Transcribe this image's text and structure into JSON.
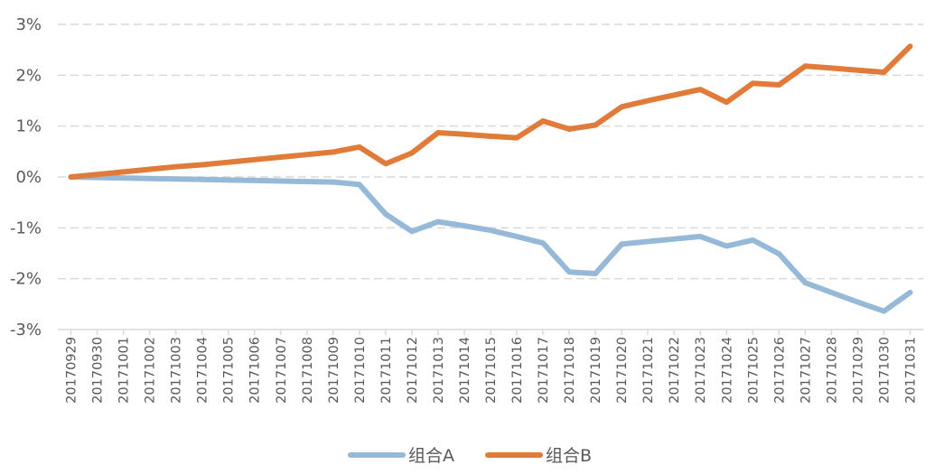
{
  "chart_data": {
    "type": "line",
    "title": "",
    "xlabel": "",
    "ylabel": "",
    "ylim": [
      -3,
      3
    ],
    "y_ticks": [
      "3%",
      "2%",
      "1%",
      "0%",
      "-1%",
      "-2%",
      "-3%"
    ],
    "y_tick_values": [
      3,
      2,
      1,
      0,
      -1,
      -2,
      -3
    ],
    "grid": true,
    "legend_position": "bottom",
    "categories": [
      "20170929",
      "20170930",
      "20171001",
      "20171002",
      "20171003",
      "20171004",
      "20171005",
      "20171006",
      "20171007",
      "20171008",
      "20171009",
      "20171010",
      "20171011",
      "20171012",
      "20171013",
      "20171014",
      "20171015",
      "20171016",
      "20171017",
      "20171018",
      "20171019",
      "20171020",
      "20171021",
      "20171022",
      "20171023",
      "20171024",
      "20171025",
      "20171026",
      "20171027",
      "20171028",
      "20171029",
      "20171030",
      "20171031"
    ],
    "series": [
      {
        "name": "组合A",
        "color": "#95B9D7",
        "values": [
          0,
          -0.01,
          -0.02,
          -0.03,
          -0.04,
          -0.05,
          -0.06,
          -0.07,
          -0.08,
          -0.09,
          -0.1,
          -0.15,
          -0.73,
          -1.07,
          -0.88,
          -0.96,
          -1.05,
          -1.17,
          -1.3,
          -1.87,
          -1.9,
          -1.32,
          -1.27,
          -1.22,
          -1.17,
          -1.36,
          -1.24,
          -1.51,
          -2.08,
          -2.27,
          -2.46,
          -2.64,
          -2.27
        ]
      },
      {
        "name": "组合B",
        "color": "#E07B39",
        "values": [
          0,
          0.05,
          0.1,
          0.15,
          0.2,
          0.24,
          0.29,
          0.34,
          0.39,
          0.44,
          0.49,
          0.59,
          0.26,
          0.47,
          0.87,
          0.84,
          0.8,
          0.77,
          1.1,
          0.94,
          1.02,
          1.38,
          1.5,
          1.61,
          1.72,
          1.47,
          1.84,
          1.81,
          2.18,
          2.14,
          2.1,
          2.06,
          2.57
        ]
      }
    ]
  }
}
